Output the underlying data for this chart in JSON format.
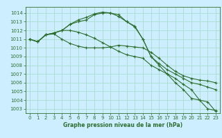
{
  "xlabel": "Graphe pression niveau de la mer (hPa)",
  "bg_color": "#cceeff",
  "grid_color": "#aaddcc",
  "line_color": "#2d6e2d",
  "ylim": [
    1002.5,
    1014.7
  ],
  "xlim": [
    -0.5,
    23.5
  ],
  "yticks": [
    1003,
    1004,
    1005,
    1006,
    1007,
    1008,
    1009,
    1010,
    1011,
    1012,
    1013,
    1014
  ],
  "xticks": [
    0,
    1,
    2,
    3,
    4,
    5,
    6,
    7,
    8,
    9,
    10,
    11,
    12,
    13,
    14,
    15,
    16,
    17,
    18,
    19,
    20,
    21,
    22,
    23
  ],
  "series": [
    [
      1011.0,
      1010.7,
      1011.5,
      1011.6,
      1011.0,
      1010.5,
      1010.2,
      1010.0,
      1010.0,
      1010.0,
      1010.1,
      1010.3,
      1010.2,
      1010.1,
      1010.0,
      1009.5,
      1008.8,
      1008.0,
      1007.3,
      1006.8,
      1006.5,
      1006.3,
      1006.2,
      1006.0
    ],
    [
      1011.0,
      1010.7,
      1011.5,
      1011.7,
      1012.0,
      1012.0,
      1011.8,
      1011.5,
      1011.1,
      1010.6,
      1010.1,
      1009.6,
      1009.2,
      1009.0,
      1008.8,
      1008.0,
      1007.5,
      1007.0,
      1006.5,
      1005.8,
      1005.2,
      1004.0,
      1003.0,
      1002.8
    ],
    [
      1011.0,
      1010.7,
      1011.5,
      1011.7,
      1012.0,
      1012.7,
      1013.0,
      1013.2,
      1013.8,
      1014.0,
      1014.0,
      1013.8,
      1013.0,
      1012.5,
      1011.0,
      1009.0,
      1008.2,
      1007.5,
      1007.0,
      1006.5,
      1006.0,
      1005.8,
      1005.5,
      1005.2
    ],
    [
      1011.0,
      1010.7,
      1011.5,
      1011.7,
      1012.0,
      1012.7,
      1013.2,
      1013.5,
      1013.9,
      1014.1,
      1014.0,
      1013.6,
      1013.0,
      1012.4,
      1011.0,
      1009.0,
      1008.0,
      1007.0,
      1006.0,
      1005.2,
      1004.2,
      1004.0,
      1003.8,
      1002.7
    ]
  ],
  "tick_fontsize": 5,
  "label_fontsize": 5.5,
  "linewidth": 0.8,
  "markersize": 2.5
}
